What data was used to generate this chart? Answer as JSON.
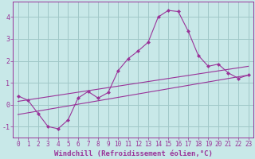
{
  "xlabel": "Windchill (Refroidissement éolien,°C)",
  "bg_color": "#c8e8e8",
  "grid_color": "#a0c8c8",
  "line_color": "#993399",
  "x_ticks": [
    0,
    1,
    2,
    3,
    4,
    5,
    6,
    7,
    8,
    9,
    10,
    11,
    12,
    13,
    14,
    15,
    16,
    17,
    18,
    19,
    20,
    21,
    22,
    23
  ],
  "y_ticks": [
    -1,
    0,
    1,
    2,
    3,
    4
  ],
  "xlim": [
    -0.5,
    23.5
  ],
  "ylim": [
    -1.5,
    4.7
  ],
  "line1_x": [
    0,
    1,
    2,
    3,
    4,
    5,
    6,
    7,
    8,
    9,
    10,
    11,
    12,
    13,
    14,
    15,
    16,
    17,
    18,
    19,
    20,
    21,
    22,
    23
  ],
  "line1_y": [
    0.4,
    0.2,
    -0.4,
    -1.0,
    -1.1,
    -0.7,
    0.3,
    0.6,
    0.3,
    0.55,
    1.55,
    2.1,
    2.45,
    2.85,
    4.0,
    4.3,
    4.25,
    3.35,
    2.25,
    1.75,
    1.85,
    1.45,
    1.2,
    1.35
  ],
  "line2_x": [
    0,
    23
  ],
  "line2_y": [
    0.15,
    1.75
  ],
  "line3_x": [
    0,
    23
  ],
  "line3_y": [
    -0.45,
    1.35
  ],
  "tick_fontsize": 5.5,
  "xlabel_fontsize": 6.5
}
